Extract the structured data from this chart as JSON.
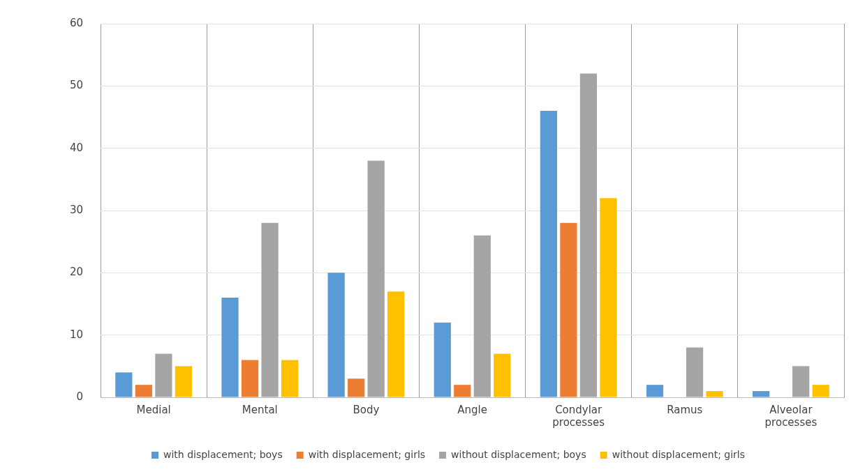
{
  "chart_data": {
    "type": "bar",
    "categories": [
      "Medial",
      "Mental",
      "Body",
      "Angle",
      "Condylar processes",
      "Ramus",
      "Alveolar processes"
    ],
    "series": [
      {
        "name": "with displacement; boys",
        "color": "#5b9bd5",
        "values": [
          4,
          16,
          20,
          12,
          46,
          2,
          1
        ]
      },
      {
        "name": "with displacement; girls",
        "color": "#ed7d31",
        "values": [
          2,
          6,
          3,
          2,
          28,
          0,
          0
        ]
      },
      {
        "name": "without displacement; boys",
        "color": "#a5a5a5",
        "values": [
          7,
          28,
          38,
          26,
          52,
          8,
          5
        ]
      },
      {
        "name": "without displacement; girls",
        "color": "#ffc000",
        "values": [
          5,
          6,
          17,
          7,
          32,
          1,
          2
        ]
      }
    ],
    "ylim": [
      0,
      60
    ],
    "yticks": [
      0,
      10,
      20,
      30,
      40,
      50,
      60
    ],
    "grid": true,
    "legend": "bottom"
  }
}
